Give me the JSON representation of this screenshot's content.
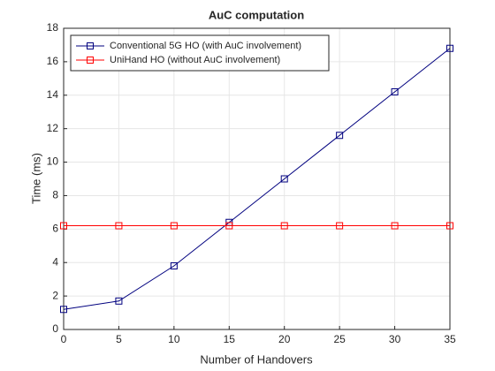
{
  "chart_data": {
    "type": "line",
    "title": "AuC computation",
    "x_label": "Number of Handovers",
    "y_label": "Time (ms)",
    "x": [
      0,
      5,
      10,
      15,
      20,
      25,
      30,
      35
    ],
    "series": [
      {
        "name": "Conventional 5G HO (with AuC involvement)",
        "color": "#00007f",
        "values": [
          1.2,
          1.7,
          3.8,
          6.4,
          9.0,
          11.6,
          14.2,
          16.8
        ]
      },
      {
        "name": "UniHand HO (without AuC involvement)",
        "color": "#ff0000",
        "values": [
          6.2,
          6.2,
          6.2,
          6.2,
          6.2,
          6.2,
          6.2,
          6.2
        ]
      }
    ],
    "xlim": [
      0,
      35
    ],
    "xticks": [
      0,
      5,
      10,
      15,
      20,
      25,
      30,
      35
    ],
    "ylim": [
      0,
      18
    ],
    "yticks": [
      0,
      2,
      4,
      6,
      8,
      10,
      12,
      14,
      16,
      18
    ],
    "grid": true,
    "legend": "top-left"
  }
}
